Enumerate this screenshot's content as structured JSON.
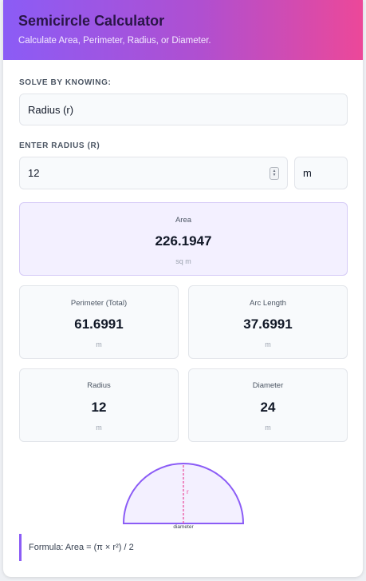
{
  "header": {
    "title": "Semicircle Calculator",
    "subtitle": "Calculate Area, Perimeter, Radius, or Diameter."
  },
  "solve_by": {
    "label": "SOLVE BY KNOWING:",
    "selected": "Radius (r)"
  },
  "input": {
    "label": "ENTER RADIUS (R)",
    "value": "12",
    "unit": "m"
  },
  "results": {
    "area": {
      "label": "Area",
      "value": "226.1947",
      "unit": "sq m"
    },
    "perimeter": {
      "label": "Perimeter (Total)",
      "value": "61.6991",
      "unit": "m"
    },
    "arc_length": {
      "label": "Arc Length",
      "value": "37.6991",
      "unit": "m"
    },
    "radius": {
      "label": "Radius",
      "value": "12",
      "unit": "m"
    },
    "diameter": {
      "label": "Diameter",
      "value": "24",
      "unit": "m"
    }
  },
  "diagram": {
    "radius_label": "r",
    "diameter_label": "diameter"
  },
  "formula": "Formula: Area = (π × r²) / 2",
  "colors": {
    "accent": "#8b5cf6",
    "accent_pink": "#ec4899",
    "area_bg": "#f3f0ff"
  }
}
